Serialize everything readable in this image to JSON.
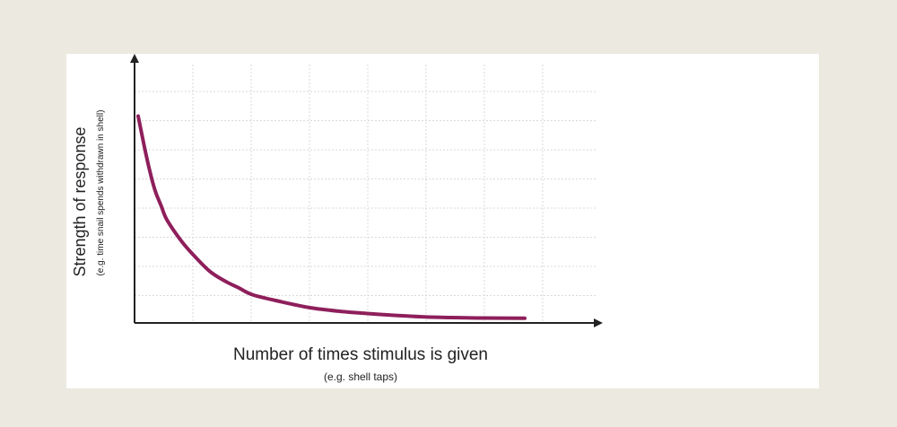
{
  "colors": {
    "background": "#ece9e1",
    "panel": "#ffffff",
    "curve": "#8e1f5b",
    "axis": "#222222",
    "grid": "#d9d9d9"
  },
  "chart_data": {
    "type": "line",
    "x_label": "Number of times stimulus is given",
    "x_sublabel": "(e.g. shell taps)",
    "y_label": "Strength of response",
    "y_sublabel": "(e.g. time snail spends withdrawn in shell)",
    "xlim": [
      0,
      14
    ],
    "ylim": [
      0,
      100
    ],
    "grid": true,
    "axis_ticks": false,
    "series": [
      {
        "x": [
          0,
          0.2,
          0.4,
          0.6,
          0.8,
          1,
          1.5,
          2,
          2.5,
          3,
          3.5,
          4,
          5,
          6,
          7,
          8,
          9,
          10,
          11,
          12,
          13.5
        ],
        "y": [
          88,
          76,
          65,
          56,
          50,
          44,
          35,
          28,
          22,
          18,
          15,
          12,
          9,
          6.5,
          5,
          4,
          3.2,
          2.6,
          2.3,
          2.1,
          2.0
        ]
      }
    ]
  }
}
